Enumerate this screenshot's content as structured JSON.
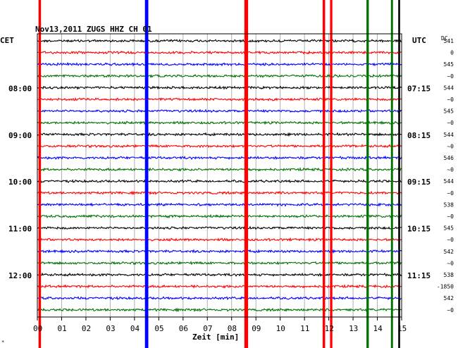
{
  "chart_data": {
    "type": "line",
    "title": "Nov13,2011   ZUGS HHZ CH 01",
    "left_label": "CET",
    "right_label": "UTC",
    "dc_label": "DC",
    "xlabel": "Zeit [min]",
    "xlim": [
      0,
      15
    ],
    "x_ticks": [
      "00",
      "01",
      "02",
      "03",
      "04",
      "05",
      "06",
      "07",
      "08",
      "09",
      "10",
      "11",
      "12",
      "13",
      "14",
      "15"
    ],
    "grid": true,
    "trace_colors": [
      "#000000",
      "#ff0000",
      "#0000ff",
      "#007000"
    ],
    "trace_count": 24,
    "left_hour_labels": [
      {
        "text": "08:00",
        "trace": 4
      },
      {
        "text": "09:00",
        "trace": 8
      },
      {
        "text": "10:00",
        "trace": 12
      },
      {
        "text": "11:00",
        "trace": 16
      },
      {
        "text": "12:00",
        "trace": 20
      }
    ],
    "right_hour_labels": [
      {
        "text": "07:15",
        "trace": 4
      },
      {
        "text": "08:15",
        "trace": 8
      },
      {
        "text": "09:15",
        "trace": 12
      },
      {
        "text": "10:15",
        "trace": 16
      },
      {
        "text": "11:15",
        "trace": 20
      }
    ],
    "dc_offsets": [
      "541",
      "0",
      "545",
      "~0",
      "544",
      "~0",
      "545",
      "~0",
      "544",
      "~0",
      "546",
      "~0",
      "544",
      "~0",
      "538",
      "~0",
      "545",
      "~0",
      "542",
      "~0",
      "538",
      "-1850",
      "542",
      "~0"
    ],
    "events": [
      {
        "minute": 0.1,
        "color": "#ff0000",
        "width": 1.6
      },
      {
        "minute": 4.5,
        "color": "#0000ff",
        "width": 2.2
      },
      {
        "minute": 8.6,
        "color": "#ff0000",
        "width": 2.4
      },
      {
        "minute": 11.8,
        "color": "#ff0000",
        "width": 1.6
      },
      {
        "minute": 12.1,
        "color": "#ff0000",
        "width": 1.5
      },
      {
        "minute": 13.6,
        "color": "#007000",
        "width": 1.5
      },
      {
        "minute": 14.6,
        "color": "#007000",
        "width": 1.3
      },
      {
        "minute": 14.9,
        "color": "#000000",
        "width": 1.2
      }
    ]
  }
}
